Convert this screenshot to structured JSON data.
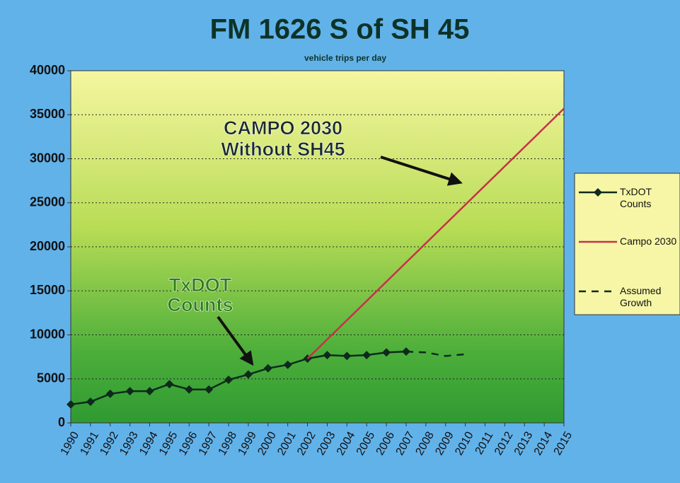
{
  "chart_data": {
    "type": "line",
    "title": "FM 1626 S of SH 45",
    "subtitle": "vehicle trips per day",
    "xlim": [
      1990,
      2015
    ],
    "xticks": [
      1990,
      1991,
      1992,
      1993,
      1994,
      1995,
      1996,
      1997,
      1998,
      1999,
      2000,
      2001,
      2002,
      2003,
      2004,
      2005,
      2006,
      2007,
      2008,
      2009,
      2010,
      2011,
      2012,
      2013,
      2014,
      2015
    ],
    "ylim": [
      0,
      40000
    ],
    "yticks": [
      0,
      5000,
      10000,
      15000,
      20000,
      25000,
      30000,
      35000,
      40000
    ],
    "grid": true,
    "legend": "right",
    "series": [
      {
        "name": "TxDOT Counts",
        "color": "#0d2a1c",
        "marker": "diamond",
        "style": "solid",
        "x": [
          1990,
          1991,
          1992,
          1993,
          1994,
          1995,
          1996,
          1997,
          1998,
          1999,
          2000,
          2001,
          2002,
          2003,
          2004,
          2005,
          2006,
          2007
        ],
        "values": [
          2100,
          2400,
          3300,
          3600,
          3600,
          4400,
          3800,
          3800,
          4900,
          5500,
          6200,
          6600,
          7300,
          7700,
          7600,
          7700,
          8000,
          8100
        ]
      },
      {
        "name": "Campo 2030",
        "color": "#c8304c",
        "style": "solid",
        "x": [
          2002,
          2015
        ],
        "values": [
          7300,
          35700
        ]
      },
      {
        "name": "Assumed Growth",
        "color": "#0d2a1c",
        "style": "dashed",
        "x": [
          2007,
          2008,
          2009,
          2010
        ],
        "values": [
          8100,
          8000,
          7600,
          7800
        ]
      }
    ],
    "annotations": [
      {
        "lines": [
          "CAMPO 2030",
          "Without SH45"
        ],
        "color": "#1a2a2a"
      },
      {
        "lines": [
          "TxDOT",
          "Counts"
        ],
        "color": "#2f7d1a"
      }
    ]
  }
}
